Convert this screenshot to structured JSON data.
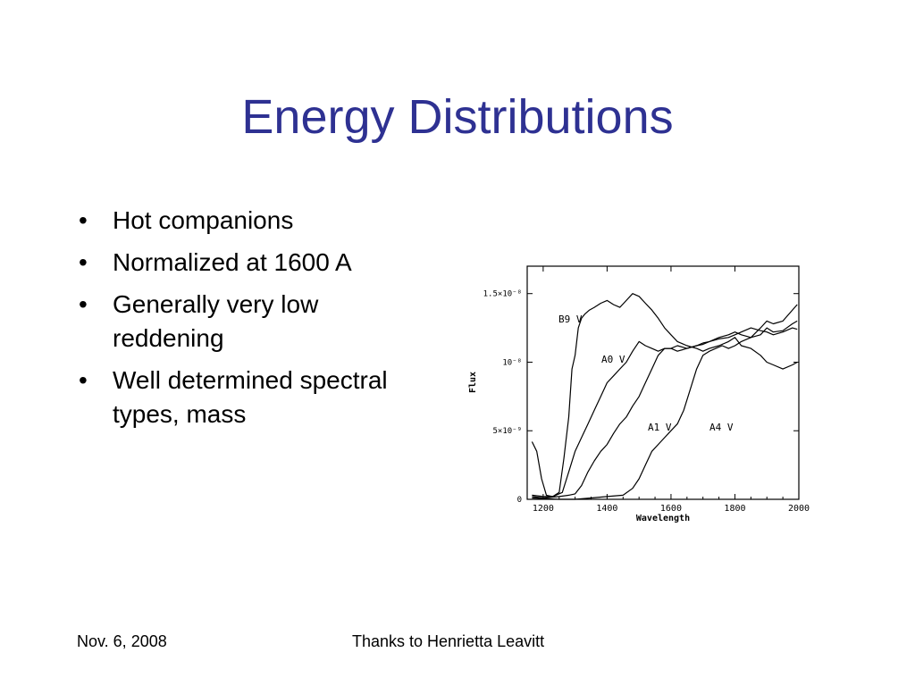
{
  "slide": {
    "title": "Energy Distributions",
    "bullets": [
      "Hot companions",
      "Normalized at 1600 A",
      "Generally very low reddening",
      "Well determined spectral types, mass"
    ],
    "footer_left": "Nov. 6, 2008",
    "footer_center": "Thanks to Henrietta Leavitt"
  },
  "chart_data": {
    "type": "line",
    "xlabel": "Wavelength",
    "ylabel": "Flux",
    "xlim": [
      1150,
      2000
    ],
    "ylim": [
      0,
      1.7e-08
    ],
    "x_ticks": [
      1200,
      1400,
      1600,
      1800,
      2000
    ],
    "x_tick_labels": [
      "1200",
      "1400",
      "1600",
      "1800",
      "2000"
    ],
    "y_ticks": [
      0,
      5e-09,
      1e-08,
      1.5e-08
    ],
    "y_tick_labels": [
      "0",
      "5×10⁻⁹",
      "10⁻⁸",
      "1.5×10⁻⁸"
    ],
    "grid": false,
    "colors": {
      "line": "#000000",
      "axis": "#000000"
    },
    "series": [
      {
        "name": "B9 V",
        "x": [
          1165,
          1180,
          1195,
          1210,
          1230,
          1250,
          1265,
          1280,
          1290,
          1300,
          1310,
          1320,
          1330,
          1345,
          1360,
          1380,
          1400,
          1420,
          1440,
          1460,
          1480,
          1500,
          1520,
          1540,
          1560,
          1580,
          1600,
          1620,
          1650,
          1680,
          1700,
          1720,
          1750,
          1780,
          1800,
          1820,
          1850,
          1880,
          1900,
          1920,
          1950,
          1980,
          1995
        ],
        "y": [
          4.2e-09,
          3.5e-09,
          1.5e-09,
          3e-10,
          2e-10,
          5e-10,
          3e-09,
          6e-09,
          9.5e-09,
          1.05e-08,
          1.25e-08,
          1.32e-08,
          1.35e-08,
          1.38e-08,
          1.4e-08,
          1.43e-08,
          1.45e-08,
          1.42e-08,
          1.4e-08,
          1.45e-08,
          1.5e-08,
          1.48e-08,
          1.43e-08,
          1.38e-08,
          1.32e-08,
          1.25e-08,
          1.2e-08,
          1.15e-08,
          1.12e-08,
          1.1e-08,
          1.08e-08,
          1.1e-08,
          1.12e-08,
          1.15e-08,
          1.18e-08,
          1.12e-08,
          1.1e-08,
          1.05e-08,
          1e-08,
          9.8e-09,
          9.5e-09,
          9.8e-09,
          1e-08
        ]
      },
      {
        "name": "A0 V",
        "x": [
          1165,
          1200,
          1230,
          1260,
          1280,
          1300,
          1320,
          1340,
          1360,
          1380,
          1400,
          1420,
          1440,
          1460,
          1480,
          1500,
          1520,
          1540,
          1560,
          1580,
          1600,
          1620,
          1650,
          1680,
          1700,
          1720,
          1750,
          1780,
          1800,
          1820,
          1850,
          1880,
          1900,
          1920,
          1950,
          1980,
          1995
        ],
        "y": [
          3e-10,
          2e-10,
          2e-10,
          5e-10,
          2e-09,
          3.5e-09,
          4.5e-09,
          5.5e-09,
          6.5e-09,
          7.5e-09,
          8.5e-09,
          9e-09,
          9.5e-09,
          1e-08,
          1.08e-08,
          1.15e-08,
          1.12e-08,
          1.1e-08,
          1.08e-08,
          1.1e-08,
          1.1e-08,
          1.12e-08,
          1.1e-08,
          1.12e-08,
          1.14e-08,
          1.15e-08,
          1.18e-08,
          1.2e-08,
          1.22e-08,
          1.2e-08,
          1.18e-08,
          1.25e-08,
          1.3e-08,
          1.28e-08,
          1.3e-08,
          1.38e-08,
          1.42e-08
        ]
      },
      {
        "name": "A1 V",
        "x": [
          1165,
          1200,
          1250,
          1280,
          1300,
          1320,
          1340,
          1360,
          1380,
          1400,
          1420,
          1440,
          1460,
          1480,
          1500,
          1520,
          1540,
          1560,
          1580,
          1600,
          1620,
          1650,
          1680,
          1700,
          1720,
          1750,
          1780,
          1800,
          1820,
          1850,
          1880,
          1900,
          1920,
          1950,
          1980,
          1995
        ],
        "y": [
          2e-10,
          1e-10,
          2e-10,
          3e-10,
          4e-10,
          1e-09,
          2e-09,
          2.8e-09,
          3.5e-09,
          4e-09,
          4.8e-09,
          5.5e-09,
          6e-09,
          6.8e-09,
          7.5e-09,
          8.5e-09,
          9.5e-09,
          1.05e-08,
          1.1e-08,
          1.1e-08,
          1.08e-08,
          1.1e-08,
          1.12e-08,
          1.13e-08,
          1.15e-08,
          1.17e-08,
          1.18e-08,
          1.2e-08,
          1.22e-08,
          1.25e-08,
          1.23e-08,
          1.22e-08,
          1.2e-08,
          1.22e-08,
          1.25e-08,
          1.24e-08
        ]
      },
      {
        "name": "A4 V",
        "x": [
          1165,
          1250,
          1300,
          1350,
          1400,
          1450,
          1480,
          1500,
          1520,
          1540,
          1560,
          1580,
          1600,
          1620,
          1640,
          1660,
          1680,
          1700,
          1720,
          1740,
          1760,
          1780,
          1800,
          1820,
          1850,
          1880,
          1900,
          1920,
          1950,
          1980,
          1995
        ],
        "y": [
          1e-10,
          0,
          0,
          1e-10,
          2e-10,
          3e-10,
          8e-10,
          1.5e-09,
          2.5e-09,
          3.5e-09,
          4e-09,
          4.5e-09,
          5e-09,
          5.5e-09,
          6.5e-09,
          8e-09,
          9.5e-09,
          1.05e-08,
          1.08e-08,
          1.1e-08,
          1.12e-08,
          1.1e-08,
          1.12e-08,
          1.15e-08,
          1.18e-08,
          1.2e-08,
          1.25e-08,
          1.22e-08,
          1.23e-08,
          1.28e-08,
          1.3e-08
        ]
      }
    ]
  }
}
